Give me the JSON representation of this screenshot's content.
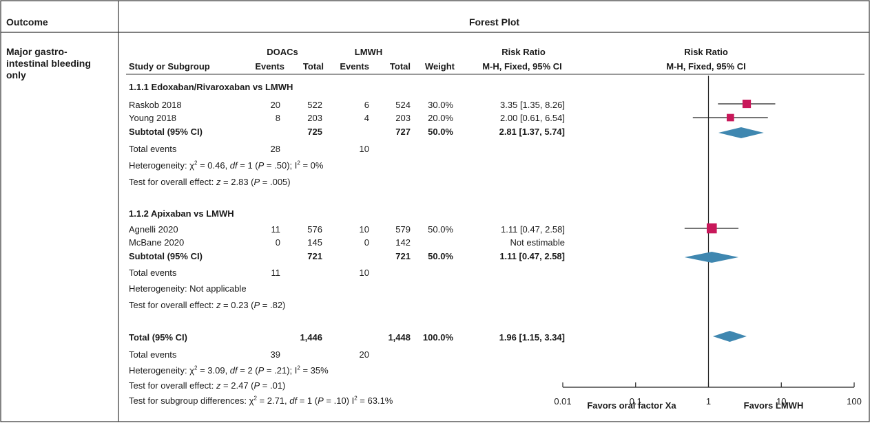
{
  "header": {
    "col1": "Outcome",
    "col2": "Forest Plot"
  },
  "outcome": {
    "line1": "Major gastro-",
    "line2": "intestinal bleeding",
    "line3": "only"
  },
  "table_head": {
    "group1": "DOACs",
    "group2": "LMWH",
    "study": "Study or Subgroup",
    "events": "Events",
    "total": "Total",
    "weight": "Weight",
    "rr1": "Risk Ratio",
    "rr2": "M-H, Fixed, 95% CI",
    "plot1": "Risk Ratio",
    "plot2": "M-H, Fixed, 95% CI"
  },
  "subgroups": [
    {
      "title": "1.1.1 Edoxaban/Rivaroxaban vs LMWH",
      "studies": [
        {
          "name": "Raskob 2018",
          "e1": "20",
          "t1": "522",
          "e2": "6",
          "t2": "524",
          "weight": "30.0%",
          "ci": "3.35 [1.35, 8.26]"
        },
        {
          "name": "Young 2018",
          "e1": "8",
          "t1": "203",
          "e2": "4",
          "t2": "203",
          "weight": "20.0%",
          "ci": "2.00 [0.61, 6.54]"
        }
      ],
      "subtotal": {
        "label": "Subtotal (95% CI)",
        "t1": "725",
        "t2": "727",
        "weight": "50.0%",
        "ci": "2.81 [1.37, 5.74]"
      },
      "events": {
        "label": "Total events",
        "e1": "28",
        "e2": "10"
      },
      "het": {
        "pre": "Heterogeneity: ",
        "chi": "χ",
        "two": "2",
        "a": " = 0.46, ",
        "df": "df",
        "b": " = 1 (",
        "p": "P",
        "c": " = .50); I",
        "d": " = 0%"
      },
      "test": {
        "pre": "Test for overall effect: ",
        "z": "z",
        "a": " = 2.83 (",
        "p": "P",
        "b": " = .005)"
      }
    },
    {
      "title": "1.1.2 Apixaban vs LMWH",
      "studies": [
        {
          "name": "Agnelli 2020",
          "e1": "11",
          "t1": "576",
          "e2": "10",
          "t2": "579",
          "weight": "50.0%",
          "ci": "1.11 [0.47, 2.58]"
        },
        {
          "name": "McBane 2020",
          "e1": "0",
          "t1": "145",
          "e2": "0",
          "t2": "142",
          "weight": "",
          "ci": "Not estimable"
        }
      ],
      "subtotal": {
        "label": "Subtotal (95% CI)",
        "t1": "721",
        "t2": "721",
        "weight": "50.0%",
        "ci": "1.11 [0.47, 2.58]"
      },
      "events": {
        "label": "Total events",
        "e1": "11",
        "e2": "10"
      },
      "het": {
        "text": "Heterogeneity: Not applicable"
      },
      "test": {
        "pre": "Test for overall effect: ",
        "z": "z",
        "a": " = 0.23 (",
        "p": "P",
        "b": " = .82)"
      }
    }
  ],
  "overall": {
    "label": "Total (95% CI)",
    "t1": "1,446",
    "t2": "1,448",
    "weight": "100.0%",
    "ci": "1.96 [1.15, 3.34]",
    "events": {
      "label": "Total events",
      "e1": "39",
      "e2": "20"
    },
    "het": {
      "pre": "Heterogeneity: ",
      "chi": "χ",
      "two": "2",
      "a": " = 3.09, ",
      "df": "df",
      "b": " = 2 (",
      "p": "P",
      "c": " = .21); I",
      "d": " = 35%"
    },
    "test": {
      "pre": "Test for overall effect: ",
      "z": "z",
      "a": " = 2.47 (",
      "p": "P",
      "b": " = .01)"
    },
    "subdiff": {
      "pre": "Test for subgroup differences: ",
      "chi": "χ",
      "two": "2",
      "a": " = 2.71, ",
      "df": "df",
      "b": " = 1 (",
      "p": "P",
      "c": " = .10) I",
      "d": " = 63.1%"
    }
  },
  "axis": {
    "left_label": "Favors oral factor Xa",
    "right_label": "Favors LMWH"
  },
  "colors": {
    "square": "#c8185a",
    "diamond": "#3f87b0",
    "line": "#222222",
    "border": "#333333"
  },
  "chart_data": {
    "type": "forest",
    "x_scale": "log",
    "xlim": [
      0.01,
      100
    ],
    "ticks": [
      0.01,
      0.1,
      1,
      10,
      100
    ],
    "tick_labels": [
      "0.01",
      "0.1",
      "1",
      "10",
      "100"
    ],
    "reference_line": 1,
    "studies": [
      {
        "name": "Raskob 2018",
        "rr": 3.35,
        "lo": 1.35,
        "hi": 8.26,
        "weight": 30.0
      },
      {
        "name": "Young 2018",
        "rr": 2.0,
        "lo": 0.61,
        "hi": 6.54,
        "weight": 20.0
      },
      {
        "name": "Agnelli 2020",
        "rr": 1.11,
        "lo": 0.47,
        "hi": 2.58,
        "weight": 50.0
      }
    ],
    "diamonds": [
      {
        "name": "Subtotal 1.1.1",
        "rr": 2.81,
        "lo": 1.37,
        "hi": 5.74
      },
      {
        "name": "Subtotal 1.1.2",
        "rr": 1.11,
        "lo": 0.47,
        "hi": 2.58
      },
      {
        "name": "Total",
        "rr": 1.96,
        "lo": 1.15,
        "hi": 3.34
      }
    ]
  }
}
